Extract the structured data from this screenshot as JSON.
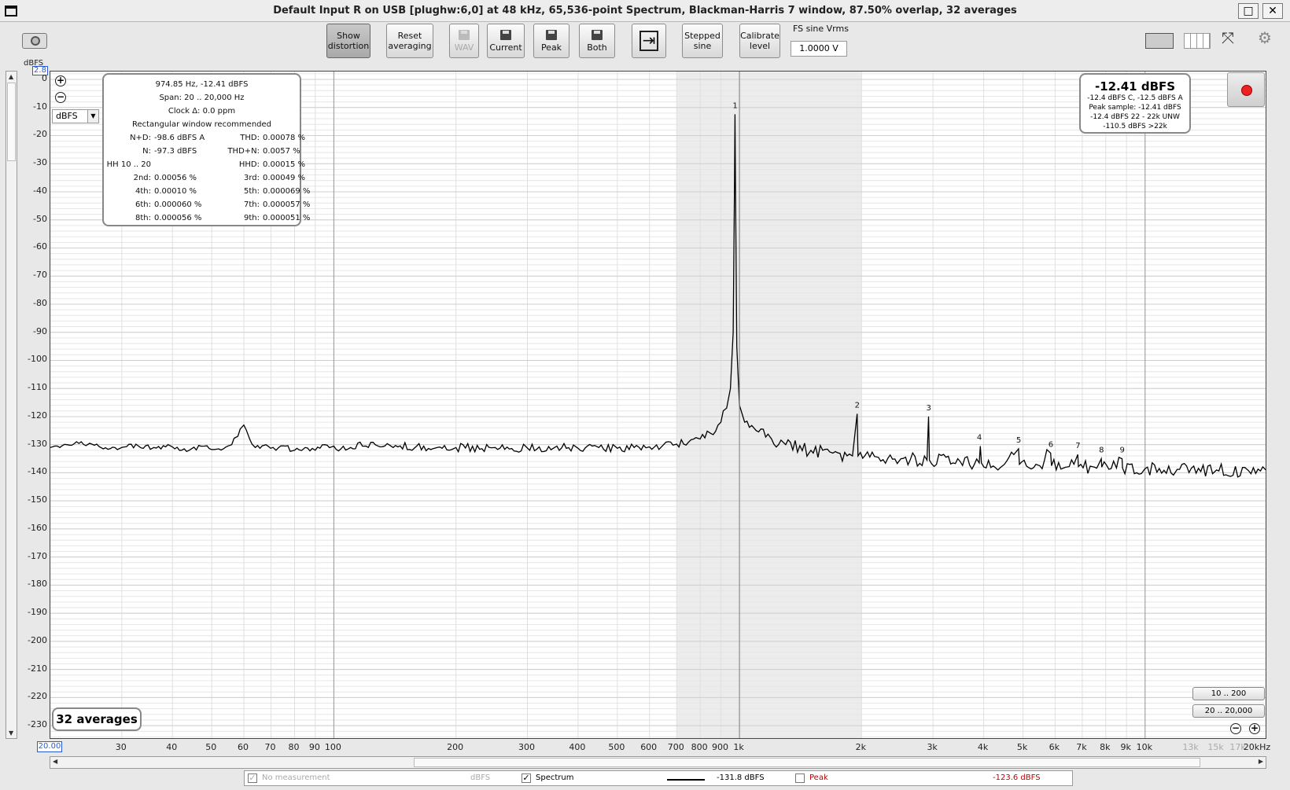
{
  "window": {
    "title": "Default Input R on USB [plughw:6,0] at 48 kHz, 65,536-point Spectrum, Blackman-Harris 7 window, 87.50% overlap, 32 averages",
    "maximize_glyph": "□",
    "close_glyph": "✕"
  },
  "toolbar": {
    "show_distortion": [
      "Show",
      "distortion"
    ],
    "reset_averaging": [
      "Reset",
      "averaging"
    ],
    "wav": "WAV",
    "current": "Current",
    "peak": "Peak",
    "both": "Both",
    "stepped_sine": [
      "Stepped",
      "sine"
    ],
    "calibrate_level": [
      "Calibrate",
      "level"
    ],
    "fs_label": "FS sine Vrms",
    "fs_value": "1.0000 V"
  },
  "y_axis": {
    "title": "dBFS",
    "top_value": "2.8",
    "unit_select": "dBFS"
  },
  "x_axis": {
    "start_value": "20.00"
  },
  "distortion_panel": {
    "line1": "974.85 Hz, -12.41 dBFS",
    "line2": "Span: 20 .. 20,000 Hz",
    "line3": "Clock Δ: 0.0 ppm",
    "line4": "Rectangular window recommended",
    "rows": [
      {
        "k1": "N+D:",
        "v1": "-98.6 dBFS A",
        "k2": "THD:",
        "v2": "0.00078 %"
      },
      {
        "k1": "N:",
        "v1": "-97.3 dBFS",
        "k2": "THD+N:",
        "v2": "0.0057 %"
      },
      {
        "k1": "HH 10 .. 20",
        "v1": "",
        "k2": "HHD:",
        "v2": "0.00015 %"
      },
      {
        "k1": "2nd:",
        "v1": "0.00056 %",
        "k2": "3rd:",
        "v2": "0.00049 %"
      },
      {
        "k1": "4th:",
        "v1": "0.00010 %",
        "k2": "5th:",
        "v2": "0.000069 %"
      },
      {
        "k1": "6th:",
        "v1": "0.000060 %",
        "k2": "7th:",
        "v2": "0.000057 %"
      },
      {
        "k1": "8th:",
        "v1": "0.000056 %",
        "k2": "9th:",
        "v2": "0.000051 %"
      }
    ]
  },
  "level_box": {
    "main": "-12.41 dBFS",
    "l1": "-12.4 dBFS C, -12.5 dBFS A",
    "l2": "Peak sample: -12.41 dBFS",
    "l3": "-12.4 dBFS 22 - 22k UNW",
    "l4": "-110.5 dBFS >22k"
  },
  "averages_label": "32 averages",
  "zoom_buttons": {
    "a": "10 .. 200",
    "b": "20 .. 20,000"
  },
  "legend": {
    "no_measurement": "No measurement",
    "no_measurement_unit": "dBFS",
    "spectrum": "Spectrum",
    "spectrum_value": "-131.8 dBFS",
    "peak": "Peak",
    "peak_value": "-123.6 dBFS",
    "peak_color": "#c00000"
  },
  "chart_data": {
    "type": "line",
    "title": "",
    "xlabel": "",
    "ylabel": "dBFS",
    "x_scale": "log",
    "xlim": [
      20,
      20000
    ],
    "ylim": [
      -235,
      2.8
    ],
    "y_ticks": [
      0,
      -10,
      -20,
      -30,
      -40,
      -50,
      -60,
      -70,
      -80,
      -90,
      -100,
      -110,
      -120,
      -130,
      -140,
      -150,
      -160,
      -170,
      -180,
      -190,
      -200,
      -210,
      -220,
      -230
    ],
    "x_ticks": [
      {
        "v": 30,
        "label": "30"
      },
      {
        "v": 40,
        "label": "40"
      },
      {
        "v": 50,
        "label": "50"
      },
      {
        "v": 60,
        "label": "60"
      },
      {
        "v": 70,
        "label": "70"
      },
      {
        "v": 80,
        "label": "80"
      },
      {
        "v": 90,
        "label": "90"
      },
      {
        "v": 100,
        "label": "100"
      },
      {
        "v": 200,
        "label": "200"
      },
      {
        "v": 300,
        "label": "300"
      },
      {
        "v": 400,
        "label": "400"
      },
      {
        "v": 500,
        "label": "500"
      },
      {
        "v": 600,
        "label": "600"
      },
      {
        "v": 700,
        "label": "700"
      },
      {
        "v": 800,
        "label": "800"
      },
      {
        "v": 900,
        "label": "900"
      },
      {
        "v": 1000,
        "label": "1k"
      },
      {
        "v": 2000,
        "label": "2k"
      },
      {
        "v": 3000,
        "label": "3k"
      },
      {
        "v": 4000,
        "label": "4k"
      },
      {
        "v": 5000,
        "label": "5k"
      },
      {
        "v": 6000,
        "label": "6k"
      },
      {
        "v": 7000,
        "label": "7k"
      },
      {
        "v": 8000,
        "label": "8k"
      },
      {
        "v": 9000,
        "label": "9k"
      },
      {
        "v": 10000,
        "label": "10k"
      },
      {
        "v": 13000,
        "label": "13k",
        "dim": true
      },
      {
        "v": 15000,
        "label": "15k",
        "dim": true
      },
      {
        "v": 17000,
        "label": "17k",
        "dim": true
      },
      {
        "v": 20000,
        "label": "20kHz"
      }
    ],
    "shaded_band": [
      700,
      2000
    ],
    "series": [
      {
        "name": "Spectrum",
        "color": "#000000",
        "points": [
          [
            20,
            -131
          ],
          [
            22,
            -130
          ],
          [
            25,
            -129.5
          ],
          [
            27,
            -131.5
          ],
          [
            30,
            -131
          ],
          [
            33,
            -130.5
          ],
          [
            36,
            -131
          ],
          [
            40,
            -130.8
          ],
          [
            44,
            -132
          ],
          [
            48,
            -130.5
          ],
          [
            52,
            -131.5
          ],
          [
            56,
            -130
          ],
          [
            58,
            -127
          ],
          [
            60,
            -123
          ],
          [
            62,
            -128
          ],
          [
            64,
            -131
          ],
          [
            68,
            -130
          ],
          [
            72,
            -132
          ],
          [
            76,
            -130.5
          ],
          [
            80,
            -132
          ],
          [
            85,
            -131
          ],
          [
            90,
            -132
          ],
          [
            95,
            -130
          ],
          [
            100,
            -130.5
          ],
          [
            110,
            -131
          ],
          [
            120,
            -130.5
          ],
          [
            140,
            -131
          ],
          [
            160,
            -130.5
          ],
          [
            180,
            -131
          ],
          [
            200,
            -131
          ],
          [
            250,
            -131
          ],
          [
            300,
            -131.2
          ],
          [
            350,
            -131
          ],
          [
            400,
            -131.3
          ],
          [
            450,
            -131
          ],
          [
            500,
            -131.3
          ],
          [
            550,
            -131
          ],
          [
            600,
            -130.8
          ],
          [
            650,
            -130
          ],
          [
            700,
            -129.8
          ],
          [
            750,
            -129
          ],
          [
            800,
            -128
          ],
          [
            850,
            -126
          ],
          [
            900,
            -122
          ],
          [
            930,
            -117
          ],
          [
            950,
            -110
          ],
          [
            965,
            -90
          ],
          [
            972,
            -40
          ],
          [
            975,
            -12.41
          ],
          [
            978,
            -40
          ],
          [
            985,
            -95
          ],
          [
            1000,
            -116
          ],
          [
            1030,
            -122
          ],
          [
            1100,
            -125
          ],
          [
            1200,
            -128
          ],
          [
            1300,
            -130
          ],
          [
            1500,
            -132
          ],
          [
            1700,
            -133
          ],
          [
            1900,
            -134
          ],
          [
            1950,
            -119
          ],
          [
            1960,
            -134
          ],
          [
            2200,
            -134.5
          ],
          [
            2500,
            -135
          ],
          [
            2900,
            -135.5
          ],
          [
            2925,
            -120
          ],
          [
            2940,
            -135.5
          ],
          [
            3500,
            -136
          ],
          [
            3900,
            -136.5
          ],
          [
            3925,
            -130.5
          ],
          [
            3950,
            -136.5
          ],
          [
            4500,
            -137
          ],
          [
            4875,
            -131.5
          ],
          [
            4900,
            -137
          ],
          [
            5500,
            -137.5
          ],
          [
            5850,
            -133
          ],
          [
            5880,
            -137.5
          ],
          [
            6500,
            -137.8
          ],
          [
            6825,
            -133.5
          ],
          [
            6850,
            -137.8
          ],
          [
            7500,
            -138
          ],
          [
            7800,
            -135
          ],
          [
            7820,
            -138
          ],
          [
            8500,
            -138.3
          ],
          [
            8775,
            -135
          ],
          [
            8800,
            -138.3
          ],
          [
            10000,
            -138.5
          ],
          [
            12000,
            -138.8
          ],
          [
            15000,
            -139
          ],
          [
            18000,
            -139.3
          ],
          [
            20000,
            -139.5
          ]
        ]
      }
    ],
    "harmonic_markers": [
      {
        "label": "1",
        "x": 975,
        "y": -12.41
      },
      {
        "label": "2",
        "x": 1950,
        "y": -119
      },
      {
        "label": "3",
        "x": 2925,
        "y": -120
      },
      {
        "label": "4",
        "x": 3900,
        "y": -130.5
      },
      {
        "label": "5",
        "x": 4875,
        "y": -131.5
      },
      {
        "label": "6",
        "x": 5850,
        "y": -133
      },
      {
        "label": "7",
        "x": 6825,
        "y": -133.5
      },
      {
        "label": "8",
        "x": 7800,
        "y": -135
      },
      {
        "label": "9",
        "x": 8775,
        "y": -135
      }
    ]
  }
}
